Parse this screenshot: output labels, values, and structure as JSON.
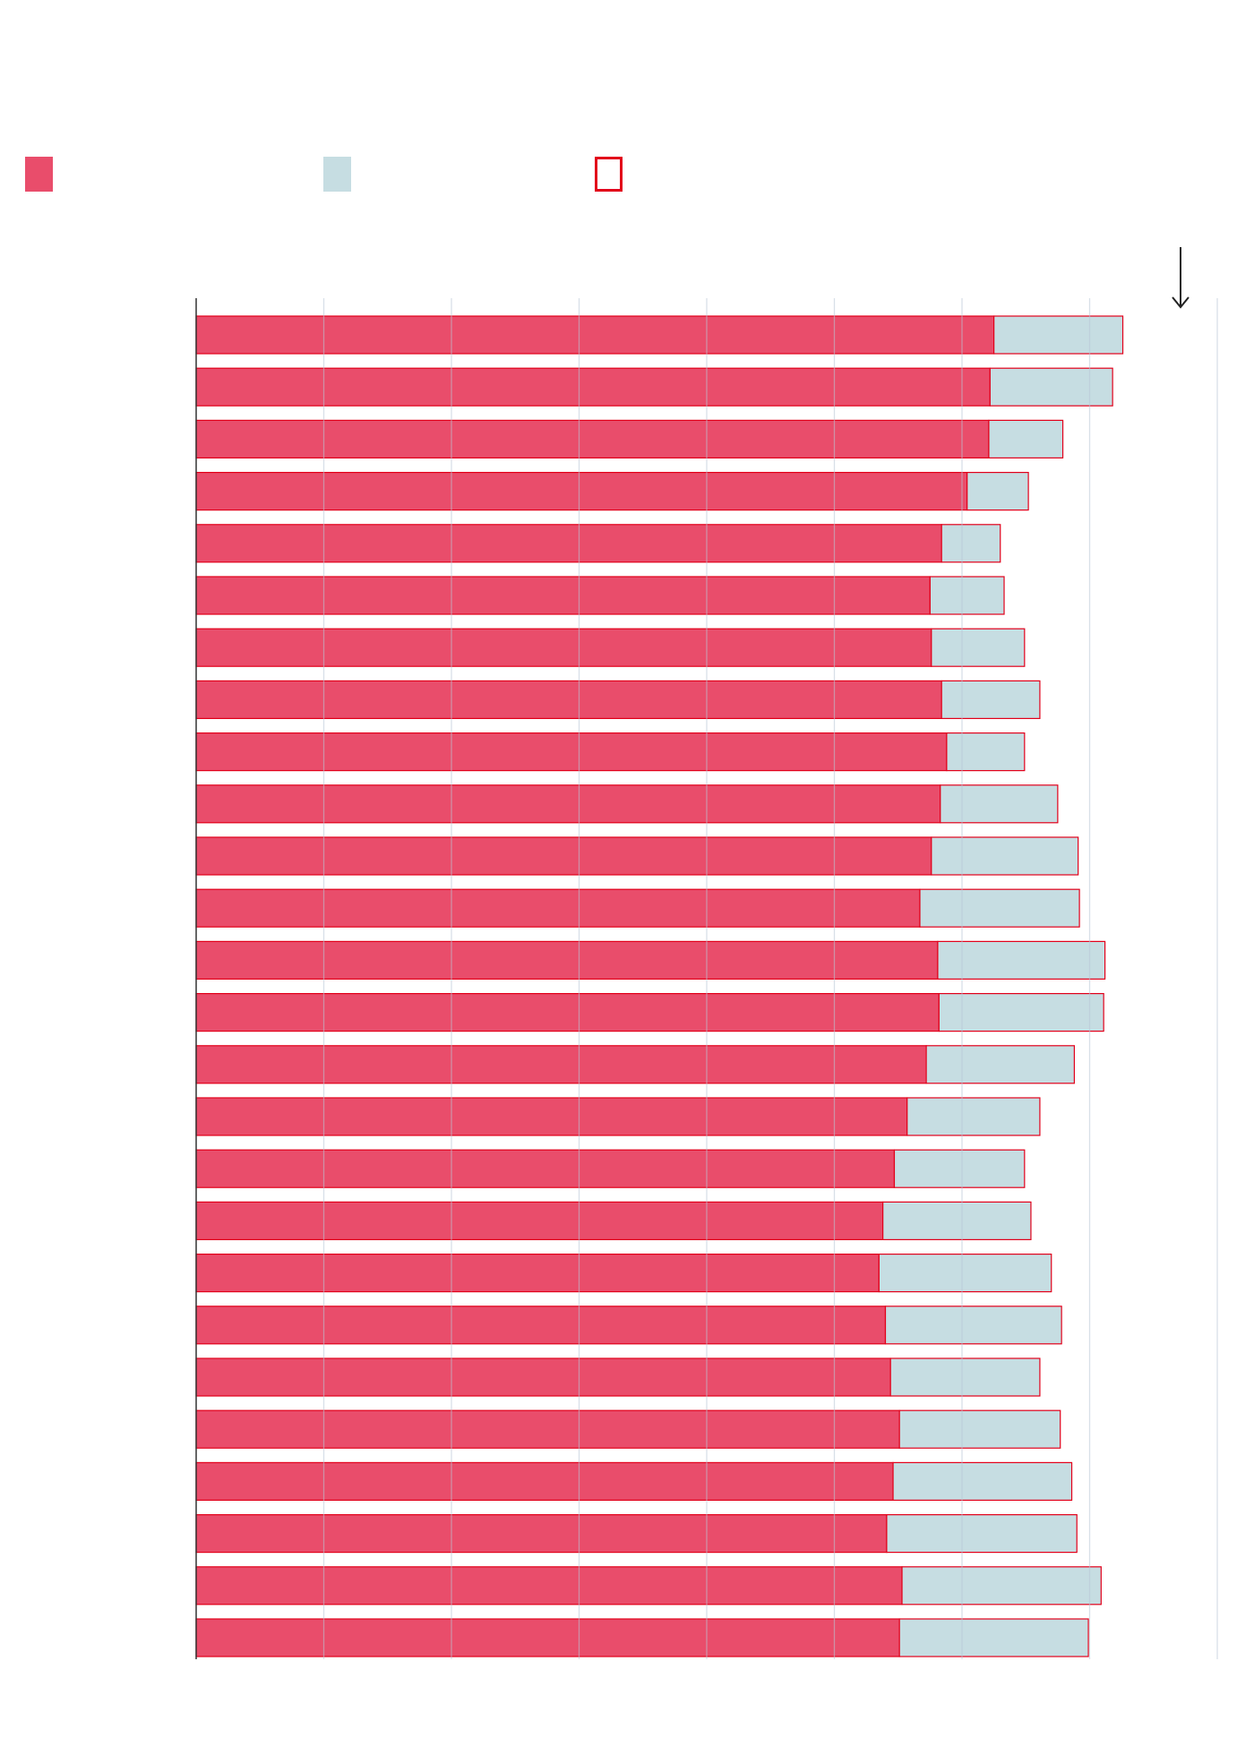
{
  "colors": {
    "primary": "#e94d6b",
    "secondary": "#c6dde2",
    "outline": "#e2001a",
    "gridline": "#b9c7d6",
    "axis": "#333333",
    "background": "#ffffff"
  },
  "legend": [
    {
      "label": "",
      "style": "filled-primary"
    },
    {
      "label": "",
      "style": "filled-secondary"
    },
    {
      "label": "",
      "style": "outline"
    }
  ],
  "sort_indicator": {
    "icon": "arrow-down-icon"
  },
  "chart_data": {
    "type": "bar",
    "orientation": "horizontal",
    "stacked": true,
    "title": "",
    "xlabel": "",
    "ylabel": "",
    "xlim": [
      0,
      80
    ],
    "grid": true,
    "legend_position": "top",
    "categories": [
      "",
      "",
      "",
      "",
      "",
      "",
      "",
      "",
      "",
      "",
      "",
      "",
      "",
      "",
      "",
      "",
      "",
      "",
      "",
      "",
      "",
      "",
      "",
      "",
      "",
      ""
    ],
    "series": [
      {
        "values": [
          62.5,
          62.2,
          62.1,
          60.4,
          58.4,
          57.5,
          57.6,
          58.4,
          58.8,
          58.3,
          57.6,
          56.7,
          58.1,
          58.2,
          57.2,
          55.7,
          54.7,
          53.8,
          53.5,
          54.0,
          54.4,
          55.1,
          54.6,
          54.1,
          55.3,
          55.1
        ]
      },
      {
        "values": [
          10.1,
          9.6,
          5.8,
          4.8,
          4.6,
          5.8,
          7.3,
          7.7,
          6.1,
          9.2,
          11.5,
          12.5,
          13.1,
          12.9,
          11.6,
          10.4,
          10.2,
          11.6,
          13.5,
          13.8,
          11.7,
          12.6,
          14.0,
          14.9,
          15.6,
          14.8
        ]
      }
    ]
  }
}
